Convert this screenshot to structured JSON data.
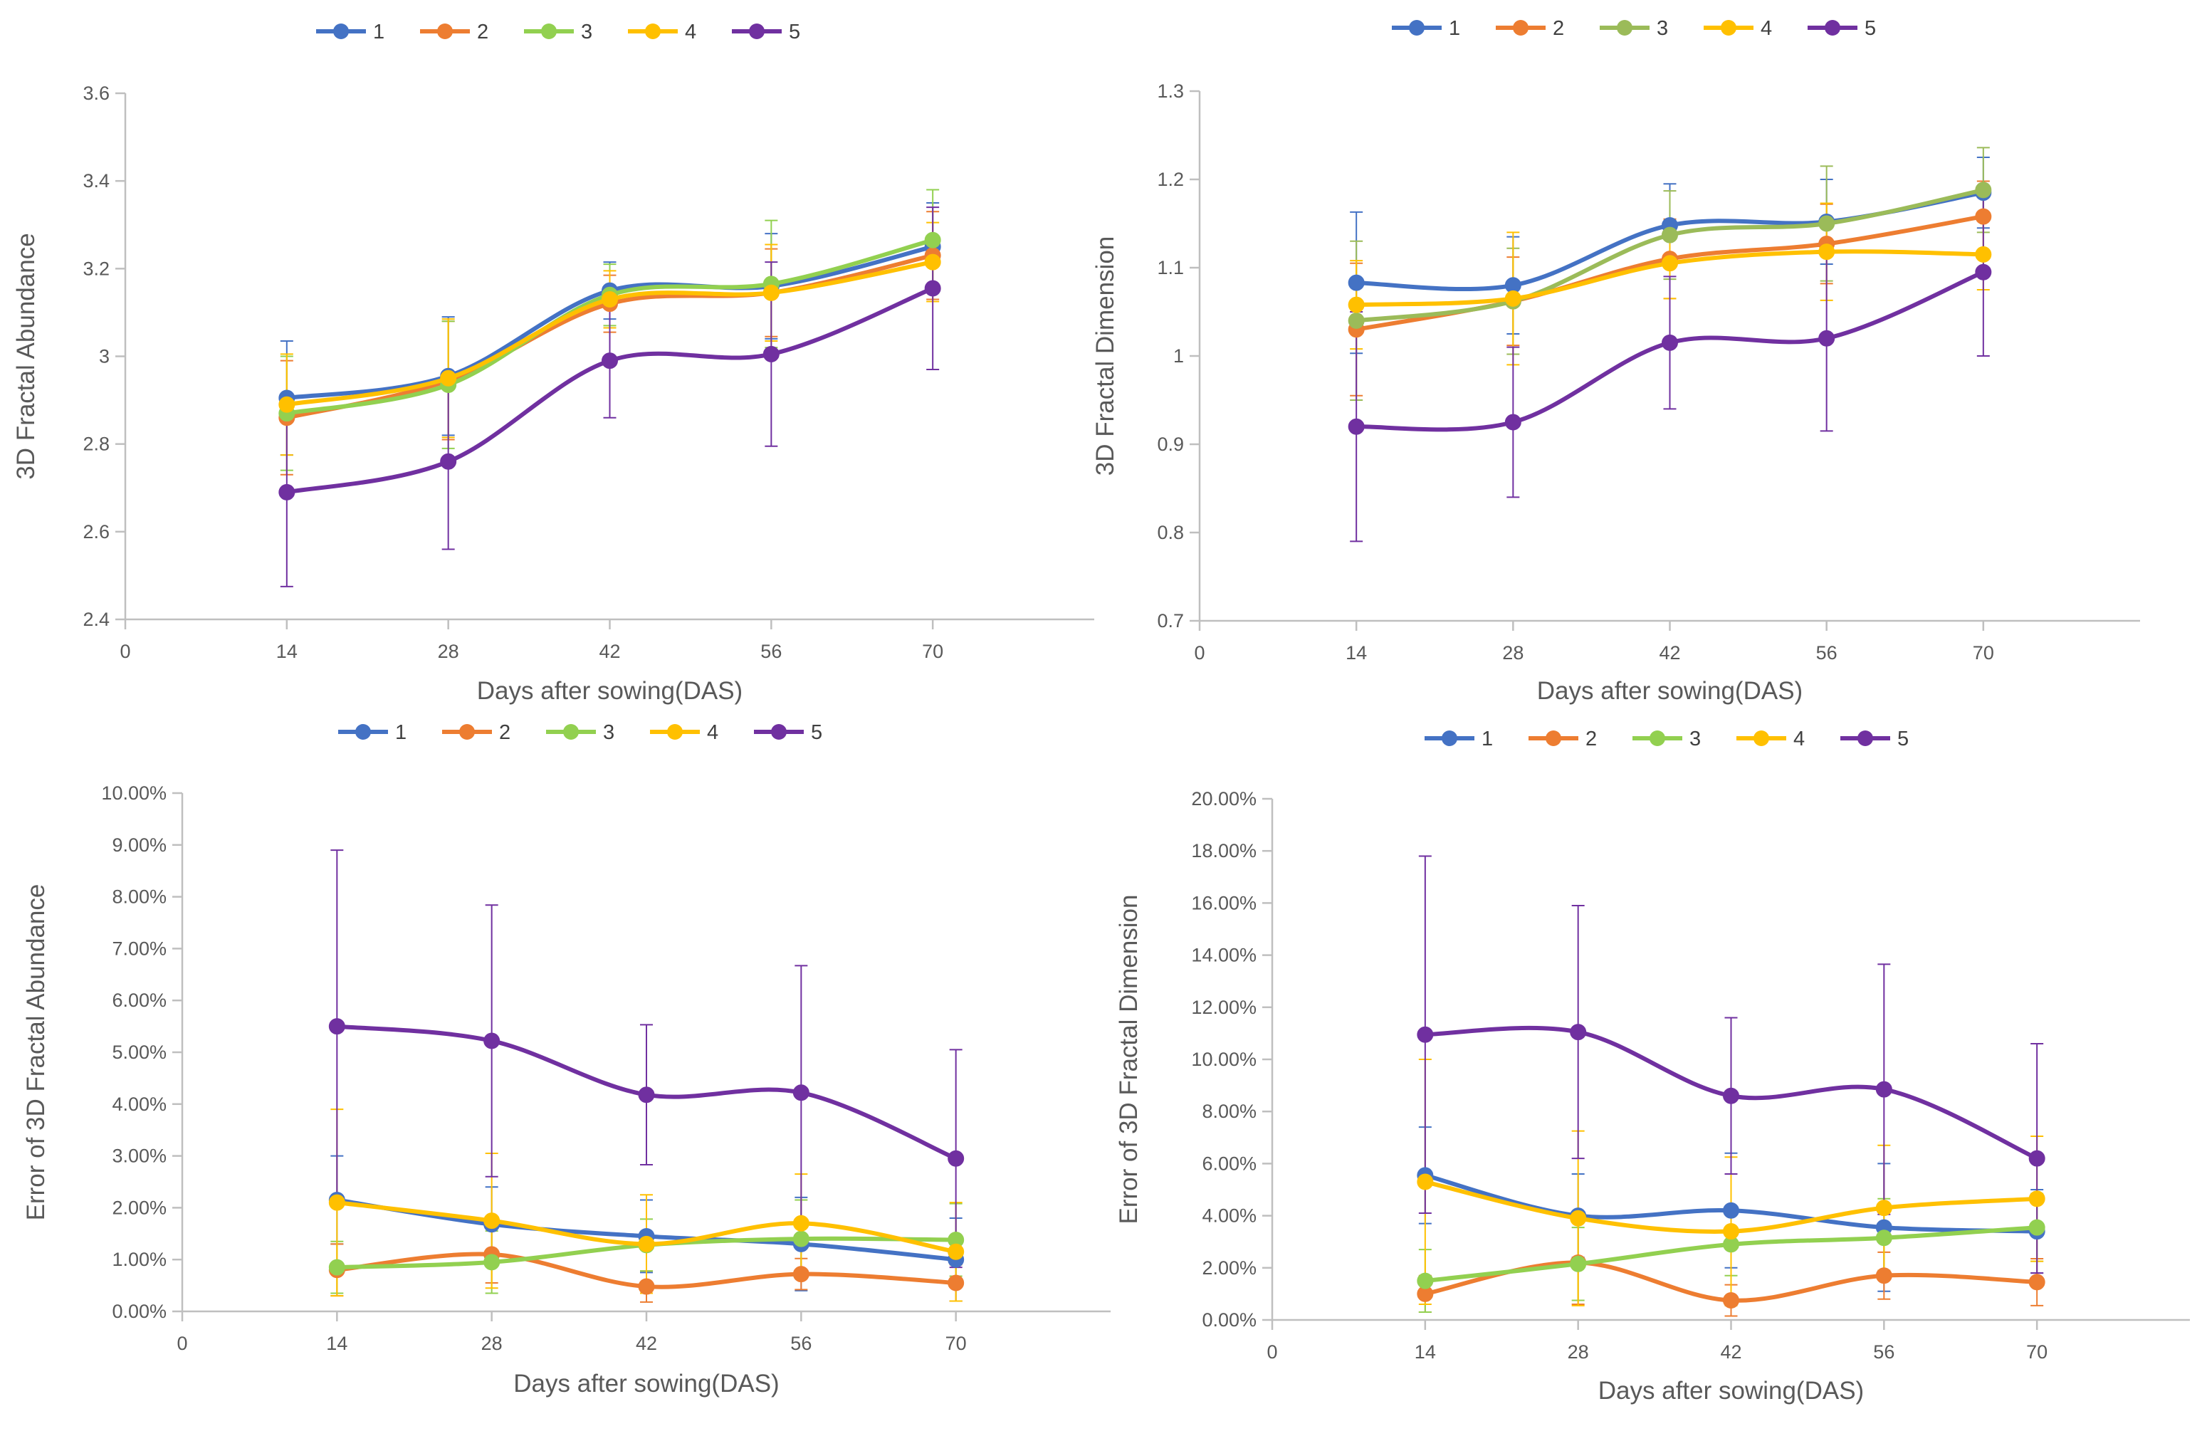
{
  "chart_data": [
    {
      "type": "line",
      "panel": "top-left",
      "ylabel": "3D Fractal Abundance",
      "xlabel": "Days after sowing(DAS)",
      "x": [
        14,
        28,
        42,
        56,
        70
      ],
      "xticks": [
        0,
        14,
        28,
        42,
        56,
        70
      ],
      "xlim": [
        0,
        84
      ],
      "ylim": [
        2.4,
        3.6
      ],
      "yticks": [
        2.4,
        2.6,
        2.8,
        3.0,
        3.2,
        3.4,
        3.6
      ],
      "ytick_labels": [
        "2.4",
        "2.6",
        "2.8",
        "3",
        "3.2",
        "3.4",
        "3.6"
      ],
      "legend_position": "top",
      "series": [
        {
          "name": "1",
          "color": "#4472C4",
          "values": [
            2.905,
            2.955,
            3.15,
            3.16,
            3.25
          ],
          "errors": [
            0.13,
            0.135,
            0.065,
            0.12,
            0.1
          ]
        },
        {
          "name": "2",
          "color": "#ED7D31",
          "values": [
            2.86,
            2.945,
            3.12,
            3.145,
            3.23
          ],
          "errors": [
            0.13,
            0.135,
            0.065,
            0.1,
            0.1
          ]
        },
        {
          "name": "3",
          "color": "#92D050",
          "values": [
            2.87,
            2.935,
            3.14,
            3.165,
            3.265
          ],
          "errors": [
            0.13,
            0.145,
            0.07,
            0.145,
            0.115
          ]
        },
        {
          "name": "4",
          "color": "#FFC000",
          "values": [
            2.89,
            2.95,
            3.13,
            3.145,
            3.215
          ],
          "errors": [
            0.115,
            0.135,
            0.065,
            0.11,
            0.09
          ]
        },
        {
          "name": "5",
          "color": "#7030A0",
          "values": [
            2.69,
            2.76,
            2.99,
            3.005,
            3.155
          ],
          "errors": [
            0.215,
            0.2,
            0.13,
            0.21,
            0.185
          ]
        }
      ]
    },
    {
      "type": "line",
      "panel": "top-right",
      "ylabel": "3D Fractal Dimension",
      "xlabel": "Days after sowing(DAS)",
      "x": [
        14,
        28,
        42,
        56,
        70
      ],
      "xticks": [
        0,
        14,
        28,
        42,
        56,
        70
      ],
      "xlim": [
        0,
        84
      ],
      "ylim": [
        0.7,
        1.3
      ],
      "yticks": [
        0.7,
        0.8,
        0.9,
        1.0,
        1.1,
        1.2,
        1.3
      ],
      "ytick_labels": [
        "0.7",
        "0.8",
        "0.9",
        "1",
        "1.1",
        "1.2",
        "1.3"
      ],
      "legend_position": "top",
      "series": [
        {
          "name": "1",
          "color": "#4472C4",
          "values": [
            1.083,
            1.08,
            1.148,
            1.152,
            1.185
          ],
          "errors": [
            0.08,
            0.055,
            0.047,
            0.048,
            0.04
          ]
        },
        {
          "name": "2",
          "color": "#ED7D31",
          "values": [
            1.03,
            1.062,
            1.11,
            1.127,
            1.158
          ],
          "errors": [
            0.075,
            0.05,
            0.045,
            0.045,
            0.04
          ]
        },
        {
          "name": "3",
          "color": "#9BBB59",
          "values": [
            1.04,
            1.062,
            1.137,
            1.15,
            1.188
          ],
          "errors": [
            0.09,
            0.06,
            0.05,
            0.065,
            0.048
          ]
        },
        {
          "name": "4",
          "color": "#FFC000",
          "values": [
            1.058,
            1.065,
            1.105,
            1.118,
            1.115
          ],
          "errors": [
            0.05,
            0.075,
            0.04,
            0.055,
            0.04
          ]
        },
        {
          "name": "5",
          "color": "#7030A0",
          "values": [
            0.92,
            0.925,
            1.015,
            1.02,
            1.095
          ],
          "errors": [
            0.13,
            0.085,
            0.075,
            0.105,
            0.095
          ]
        }
      ]
    },
    {
      "type": "line",
      "panel": "bottom-left",
      "ylabel": "Error of 3D Fractal Abundance",
      "xlabel": "Days after sowing(DAS)",
      "x": [
        14,
        28,
        42,
        56,
        70
      ],
      "xticks": [
        0,
        14,
        28,
        42,
        56,
        70
      ],
      "xlim": [
        0,
        84
      ],
      "ylim": [
        0,
        0.1
      ],
      "yticks": [
        0,
        0.01,
        0.02,
        0.03,
        0.04,
        0.05,
        0.06,
        0.07,
        0.08,
        0.09,
        0.1
      ],
      "ytick_labels": [
        "0.00%",
        "1.00%",
        "2.00%",
        "3.00%",
        "4.00%",
        "5.00%",
        "6.00%",
        "7.00%",
        "8.00%",
        "9.00%",
        "10.00%"
      ],
      "legend_position": "top",
      "series": [
        {
          "name": "1",
          "color": "#4472C4",
          "values": [
            0.0215,
            0.0168,
            0.0145,
            0.013,
            0.01
          ],
          "errors": [
            0.0085,
            0.0072,
            0.007,
            0.009,
            0.008
          ]
        },
        {
          "name": "2",
          "color": "#ED7D31",
          "values": [
            0.008,
            0.011,
            0.0048,
            0.0072,
            0.0055
          ],
          "errors": [
            0.005,
            0.0055,
            0.003,
            0.003,
            0.0035
          ]
        },
        {
          "name": "3",
          "color": "#92D050",
          "values": [
            0.0085,
            0.0095,
            0.0128,
            0.014,
            0.0138
          ],
          "errors": [
            0.005,
            0.006,
            0.005,
            0.0075,
            0.007
          ]
        },
        {
          "name": "4",
          "color": "#FFC000",
          "values": [
            0.021,
            0.0175,
            0.013,
            0.017,
            0.0115
          ],
          "errors": [
            0.018,
            0.013,
            0.0095,
            0.0095,
            0.0095
          ]
        },
        {
          "name": "5",
          "color": "#7030A0",
          "values": [
            0.055,
            0.0522,
            0.0418,
            0.0422,
            0.0295
          ],
          "errors": [
            0.034,
            0.0262,
            0.0135,
            0.0245,
            0.021
          ]
        }
      ]
    },
    {
      "type": "line",
      "panel": "bottom-right",
      "ylabel": "Error of 3D Fractal Dimension",
      "xlabel": "Days after sowing(DAS)",
      "x": [
        14,
        28,
        42,
        56,
        70
      ],
      "xticks": [
        0,
        14,
        28,
        42,
        56,
        70
      ],
      "xlim": [
        0,
        84
      ],
      "ylim": [
        0,
        0.2
      ],
      "yticks": [
        0,
        0.02,
        0.04,
        0.06,
        0.08,
        0.1,
        0.12,
        0.14,
        0.16,
        0.18,
        0.2
      ],
      "ytick_labels": [
        "0.00%",
        "2.00%",
        "4.00%",
        "6.00%",
        "8.00%",
        "10.00%",
        "12.00%",
        "14.00%",
        "16.00%",
        "18.00%",
        "20.00%"
      ],
      "legend_position": "top",
      "series": [
        {
          "name": "1",
          "color": "#4472C4",
          "values": [
            0.0555,
            0.04,
            0.042,
            0.0355,
            0.034
          ],
          "errors": [
            0.0185,
            0.016,
            0.022,
            0.0245,
            0.016
          ]
        },
        {
          "name": "2",
          "color": "#ED7D31",
          "values": [
            0.01,
            0.022,
            0.0075,
            0.017,
            0.0145
          ],
          "errors": [
            0.007,
            0.016,
            0.006,
            0.009,
            0.009
          ]
        },
        {
          "name": "3",
          "color": "#92D050",
          "values": [
            0.015,
            0.0215,
            0.029,
            0.0315,
            0.0355
          ],
          "errors": [
            0.012,
            0.014,
            0.012,
            0.015,
            0.013
          ]
        },
        {
          "name": "4",
          "color": "#FFC000",
          "values": [
            0.053,
            0.039,
            0.034,
            0.043,
            0.0465
          ],
          "errors": [
            0.047,
            0.0335,
            0.0285,
            0.024,
            0.024
          ]
        },
        {
          "name": "5",
          "color": "#7030A0",
          "values": [
            0.1095,
            0.1105,
            0.086,
            0.0885,
            0.062
          ],
          "errors": [
            0.0685,
            0.0485,
            0.03,
            0.048,
            0.044
          ]
        }
      ]
    }
  ]
}
